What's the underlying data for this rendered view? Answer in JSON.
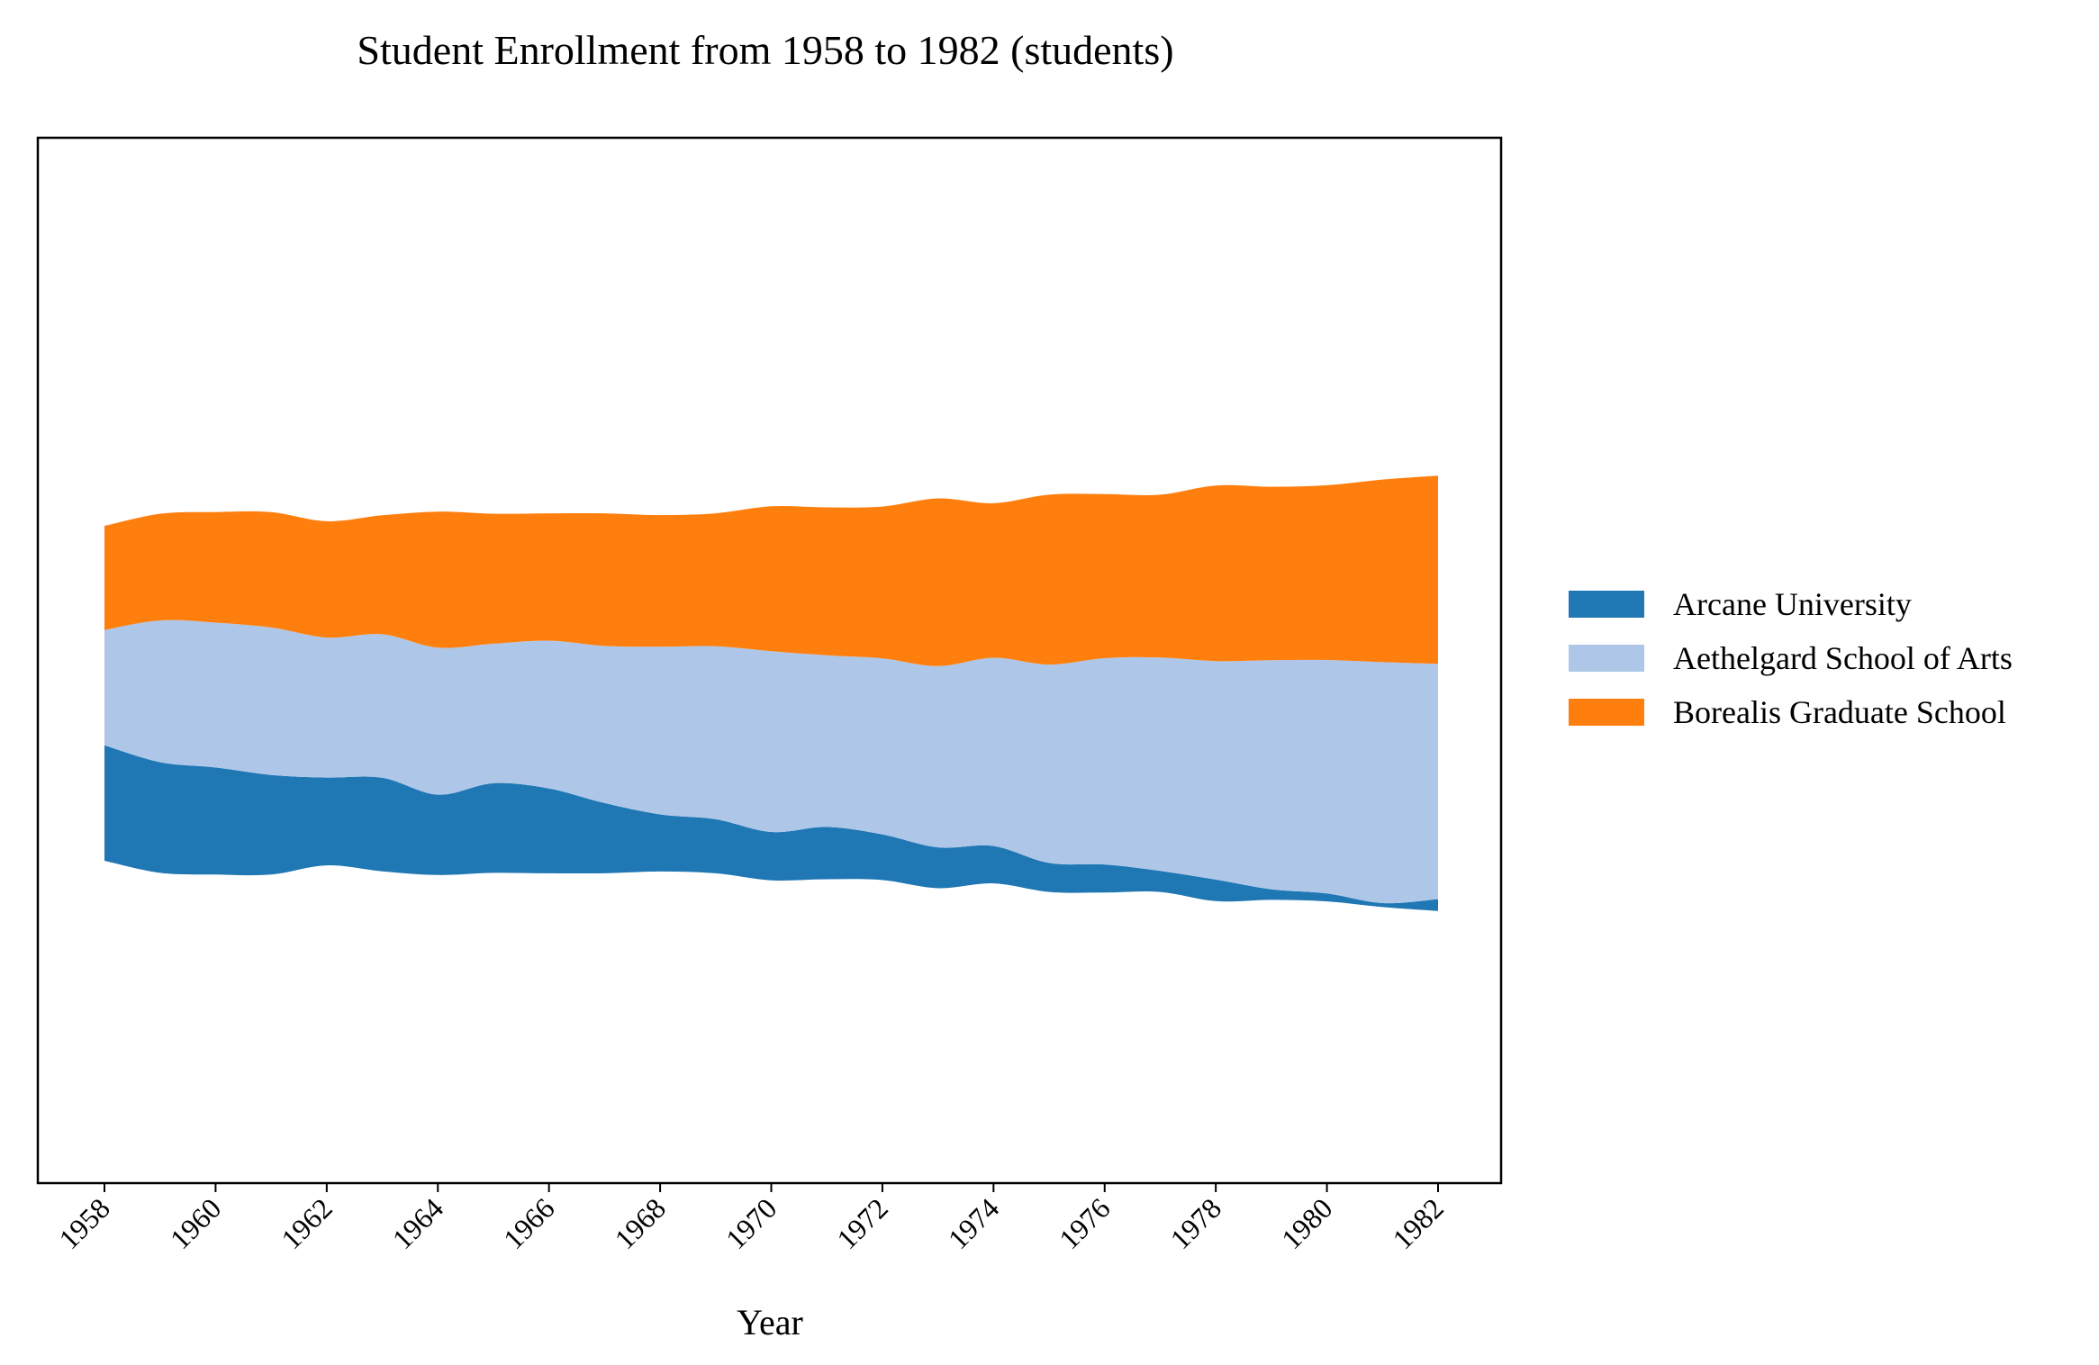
{
  "chart_data": {
    "type": "area",
    "title": "Student Enrollment from 1958 to 1982 (students)",
    "xlabel": "Year",
    "ylabel": "",
    "layout": "streamgraph (stacked, baseline centered)",
    "x": [
      1958,
      1959,
      1960,
      1961,
      1962,
      1963,
      1964,
      1965,
      1966,
      1967,
      1968,
      1969,
      1970,
      1971,
      1972,
      1973,
      1974,
      1975,
      1976,
      1977,
      1978,
      1979,
      1980,
      1981,
      1982
    ],
    "x_ticks": [
      "1958",
      "1960",
      "1962",
      "1964",
      "1966",
      "1968",
      "1970",
      "1972",
      "1974",
      "1976",
      "1978",
      "1980",
      "1982"
    ],
    "series": [
      {
        "name": "Arcane University",
        "color": "#1f77b4",
        "values": [
          263,
          252,
          244,
          227,
          200,
          213,
          183,
          204,
          193,
          160,
          130,
          123,
          110,
          119,
          104,
          93,
          85,
          66,
          64,
          48,
          49,
          24,
          18,
          9,
          27
        ]
      },
      {
        "name": "Aethelgard School of Arts",
        "color": "#aec7e8",
        "values": [
          263,
          323,
          330,
          336,
          319,
          327,
          335,
          318,
          337,
          358,
          382,
          394,
          412,
          391,
          401,
          413,
          429,
          452,
          470,
          486,
          498,
          522,
          532,
          549,
          536
        ]
      },
      {
        "name": "Borealis Graduate School",
        "color": "#ff7f0e",
        "values": [
          237,
          243,
          252,
          263,
          265,
          271,
          310,
          296,
          290,
          302,
          300,
          303,
          330,
          337,
          346,
          382,
          352,
          387,
          374,
          371,
          400,
          395,
          398,
          416,
          429
        ]
      }
    ],
    "legend": {
      "position": "right",
      "entries": [
        "Arcane University",
        "Aethelgard School of Arts",
        "Borealis Graduate School"
      ]
    },
    "grid": false
  }
}
